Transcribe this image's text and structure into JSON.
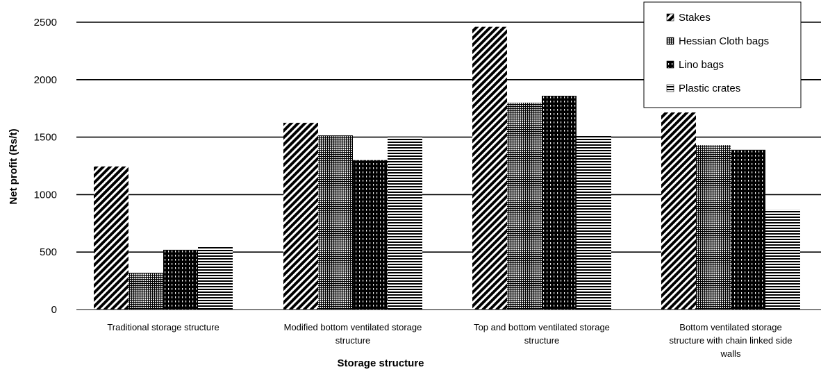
{
  "chart_data": {
    "type": "bar",
    "title": "",
    "xlabel": "Storage structure",
    "ylabel": "Net profit (Rs/t)",
    "ylim": [
      0,
      2500
    ],
    "yticks": [
      0,
      500,
      1000,
      1500,
      2000,
      2500
    ],
    "grid": true,
    "legend_position": "top-right",
    "categories": [
      [
        "Traditional storage structure"
      ],
      [
        "Modified bottom ventilated storage",
        "structure"
      ],
      [
        "Top and bottom ventilated storage",
        "structure"
      ],
      [
        "Bottom ventilated storage",
        "structure with chain linked side",
        "walls"
      ]
    ],
    "series": [
      {
        "name": "Stakes",
        "pattern": "diagonal",
        "values": [
          1245,
          1625,
          2460,
          1715
        ]
      },
      {
        "name": "Hessian Cloth bags",
        "pattern": "grid",
        "values": [
          320,
          1515,
          1800,
          1430
        ]
      },
      {
        "name": "Lino bags",
        "pattern": "dark-dashed",
        "values": [
          520,
          1300,
          1860,
          1390
        ]
      },
      {
        "name": "Plastic crates",
        "pattern": "horizontal",
        "values": [
          555,
          1505,
          1515,
          870
        ]
      }
    ]
  }
}
